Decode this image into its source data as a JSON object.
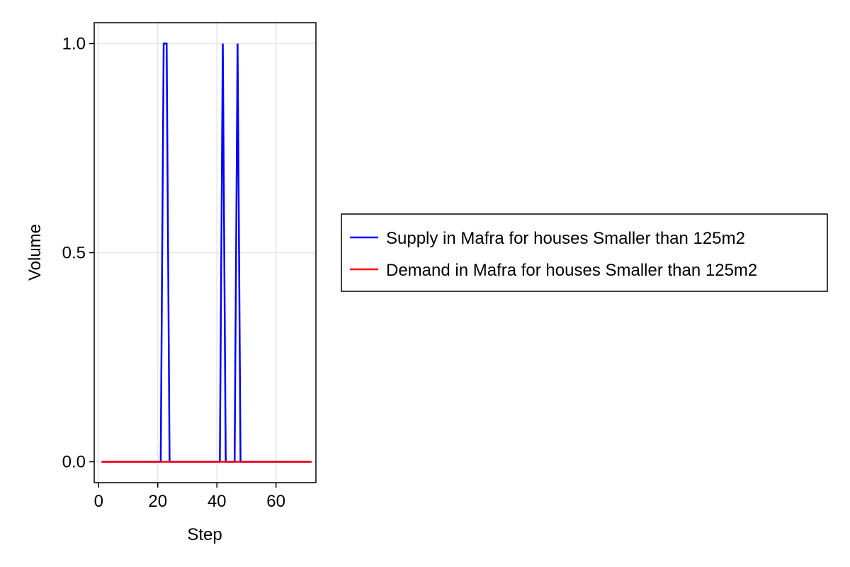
{
  "chart_data": {
    "type": "line",
    "xlabel": "Step",
    "ylabel": "Volume",
    "xlim": [
      -1.5,
      73.5
    ],
    "ylim": [
      -0.05,
      1.05
    ],
    "x_ticks": [
      0,
      20,
      40,
      60
    ],
    "x_tick_labels": [
      "0",
      "20",
      "40",
      "60"
    ],
    "y_ticks": [
      0.0,
      0.5,
      1.0
    ],
    "y_tick_labels": [
      "0.0",
      "0.5",
      "1.0"
    ],
    "grid": true,
    "legend_position": "right",
    "series": [
      {
        "name": "Supply in Mafra for houses Smaller than 125m2",
        "color": "#0000ff",
        "x": [
          1,
          21,
          22,
          23,
          24,
          41,
          42,
          43,
          46,
          47,
          48,
          72
        ],
        "y": [
          0,
          0,
          1,
          1,
          0,
          0,
          1,
          0,
          0,
          1,
          0,
          0
        ]
      },
      {
        "name": "Demand in Mafra for houses Smaller than 125m2",
        "color": "#ff0000",
        "x": [
          1,
          72
        ],
        "y": [
          0,
          0
        ]
      }
    ]
  }
}
